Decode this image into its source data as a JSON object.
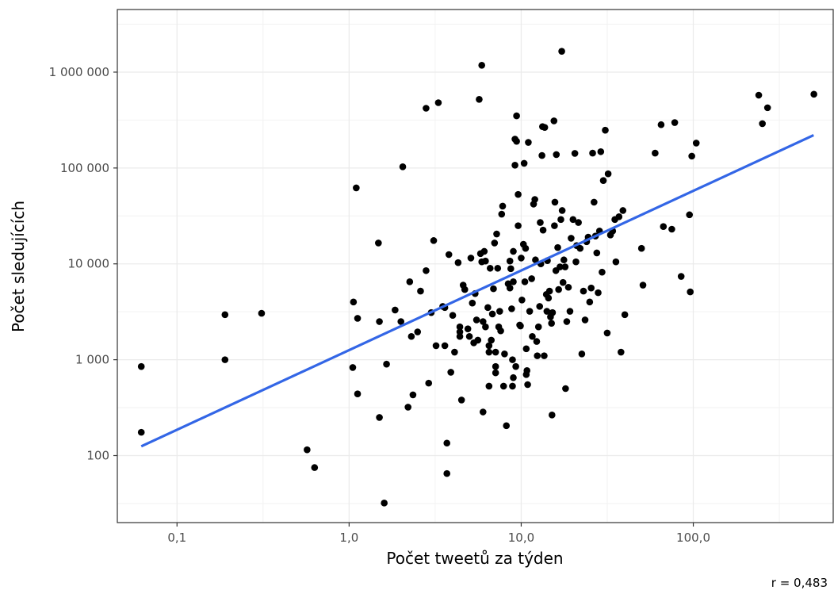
{
  "chart_data": {
    "type": "scatter",
    "xlabel": "Počet tweetů za týden",
    "ylabel": "Počet sledujících",
    "caption": "r = 0,483",
    "x_scale": "log10",
    "y_scale": "log10",
    "xlim": [
      0.045,
      650
    ],
    "ylim": [
      20,
      4500000
    ],
    "x_ticks": [
      0.1,
      1,
      10,
      100
    ],
    "x_tick_labels": [
      "0,1",
      "1,0",
      "10,0",
      "100,0"
    ],
    "y_ticks": [
      100,
      1000,
      10000,
      100000,
      1000000
    ],
    "y_tick_labels": [
      "100",
      "1 000",
      "10 000",
      "100 000",
      "1 000 000"
    ],
    "grid": true,
    "point_color": "#000000",
    "trend_color": "#3366e6",
    "trend_line": {
      "x": [
        0.062,
        500
      ],
      "y": [
        125,
        220000
      ]
    },
    "points": [
      [
        0.062,
        850
      ],
      [
        0.062,
        175
      ],
      [
        0.19,
        2950
      ],
      [
        0.19,
        1000
      ],
      [
        0.31,
        3050
      ],
      [
        0.57,
        115
      ],
      [
        0.63,
        75
      ],
      [
        1.05,
        830
      ],
      [
        1.06,
        4000
      ],
      [
        1.1,
        62000
      ],
      [
        1.12,
        2700
      ],
      [
        1.12,
        440
      ],
      [
        1.48,
        16500
      ],
      [
        1.5,
        2500
      ],
      [
        1.5,
        250
      ],
      [
        1.6,
        32
      ],
      [
        1.65,
        900
      ],
      [
        1.85,
        3300
      ],
      [
        2.0,
        2500
      ],
      [
        2.05,
        103000
      ],
      [
        2.2,
        320
      ],
      [
        2.25,
        6500
      ],
      [
        2.3,
        1750
      ],
      [
        2.35,
        430
      ],
      [
        2.5,
        1950
      ],
      [
        2.6,
        5200
      ],
      [
        2.8,
        420000
      ],
      [
        2.8,
        8500
      ],
      [
        2.9,
        570
      ],
      [
        3.0,
        3100
      ],
      [
        3.1,
        17500
      ],
      [
        3.2,
        1400
      ],
      [
        3.3,
        480000
      ],
      [
        3.5,
        3600
      ],
      [
        3.6,
        3500
      ],
      [
        3.6,
        1400
      ],
      [
        3.7,
        65
      ],
      [
        3.7,
        135
      ],
      [
        3.8,
        12500
      ],
      [
        3.9,
        740
      ],
      [
        4.0,
        2900
      ],
      [
        4.1,
        1200
      ],
      [
        4.3,
        10300
      ],
      [
        4.4,
        2200
      ],
      [
        4.4,
        1950
      ],
      [
        4.4,
        1750
      ],
      [
        4.5,
        380
      ],
      [
        4.6,
        6000
      ],
      [
        4.7,
        5400
      ],
      [
        4.9,
        2100
      ],
      [
        5.0,
        1750
      ],
      [
        5.1,
        11500
      ],
      [
        5.2,
        3900
      ],
      [
        5.3,
        1500
      ],
      [
        5.4,
        4900
      ],
      [
        5.5,
        2600
      ],
      [
        5.6,
        1600
      ],
      [
        5.7,
        520000
      ],
      [
        5.8,
        12800
      ],
      [
        5.9,
        10500
      ],
      [
        5.9,
        1180000
      ],
      [
        6.0,
        2500
      ],
      [
        6.0,
        285
      ],
      [
        6.1,
        13500
      ],
      [
        6.2,
        10700
      ],
      [
        6.2,
        2200
      ],
      [
        6.4,
        3500
      ],
      [
        6.5,
        1400
      ],
      [
        6.5,
        1200
      ],
      [
        6.5,
        530
      ],
      [
        6.6,
        9000
      ],
      [
        6.7,
        1600
      ],
      [
        6.8,
        3000
      ],
      [
        6.9,
        5500
      ],
      [
        7.0,
        16500
      ],
      [
        7.1,
        1200
      ],
      [
        7.1,
        850
      ],
      [
        7.1,
        730
      ],
      [
        7.2,
        20500
      ],
      [
        7.3,
        9000
      ],
      [
        7.4,
        2200
      ],
      [
        7.5,
        3200
      ],
      [
        7.6,
        2000
      ],
      [
        7.7,
        33000
      ],
      [
        7.8,
        40000
      ],
      [
        7.9,
        530
      ],
      [
        8.0,
        1150
      ],
      [
        8.2,
        205
      ],
      [
        8.4,
        6200
      ],
      [
        8.6,
        5600
      ],
      [
        8.6,
        10700
      ],
      [
        8.7,
        8900
      ],
      [
        8.8,
        3400
      ],
      [
        8.9,
        1000
      ],
      [
        8.9,
        530
      ],
      [
        9.0,
        6500
      ],
      [
        9.0,
        13500
      ],
      [
        9.0,
        650
      ],
      [
        9.2,
        200000
      ],
      [
        9.2,
        107000
      ],
      [
        9.3,
        850
      ],
      [
        9.4,
        190000
      ],
      [
        9.4,
        350000
      ],
      [
        9.6,
        25000
      ],
      [
        9.6,
        53000
      ],
      [
        9.8,
        2300
      ],
      [
        9.9,
        2250
      ],
      [
        10.0,
        11500
      ],
      [
        10.1,
        4200
      ],
      [
        10.3,
        16000
      ],
      [
        10.4,
        112000
      ],
      [
        10.5,
        6500
      ],
      [
        10.6,
        14500
      ],
      [
        10.7,
        1300
      ],
      [
        10.7,
        700
      ],
      [
        10.8,
        770
      ],
      [
        10.9,
        550
      ],
      [
        11.0,
        185000
      ],
      [
        11.2,
        3200
      ],
      [
        11.5,
        7000
      ],
      [
        11.6,
        1750
      ],
      [
        11.8,
        42000
      ],
      [
        12.0,
        47000
      ],
      [
        12.1,
        11000
      ],
      [
        12.3,
        1550
      ],
      [
        12.4,
        1100
      ],
      [
        12.6,
        2200
      ],
      [
        12.8,
        3600
      ],
      [
        12.9,
        27000
      ],
      [
        13.0,
        10000
      ],
      [
        13.2,
        135000
      ],
      [
        13.3,
        270000
      ],
      [
        13.4,
        22500
      ],
      [
        13.6,
        1100
      ],
      [
        13.7,
        265000
      ],
      [
        14.0,
        4800
      ],
      [
        14.1,
        3200
      ],
      [
        14.2,
        10800
      ],
      [
        14.4,
        4400
      ],
      [
        14.6,
        5200
      ],
      [
        14.8,
        2800
      ],
      [
        15.0,
        2400
      ],
      [
        15.1,
        265
      ],
      [
        15.2,
        3100
      ],
      [
        15.5,
        310000
      ],
      [
        15.6,
        25000
      ],
      [
        15.7,
        44000
      ],
      [
        15.9,
        8500
      ],
      [
        16.0,
        138000
      ],
      [
        16.3,
        14800
      ],
      [
        16.5,
        5400
      ],
      [
        16.8,
        9300
      ],
      [
        17.0,
        29000
      ],
      [
        17.2,
        1650000
      ],
      [
        17.3,
        36000
      ],
      [
        17.5,
        6400
      ],
      [
        17.7,
        11000
      ],
      [
        18.0,
        9300
      ],
      [
        18.1,
        500
      ],
      [
        18.4,
        2500
      ],
      [
        18.8,
        5700
      ],
      [
        19.2,
        3200
      ],
      [
        19.5,
        18500
      ],
      [
        20.0,
        29000
      ],
      [
        20.5,
        142000
      ],
      [
        20.8,
        10500
      ],
      [
        21.0,
        15500
      ],
      [
        21.5,
        27000
      ],
      [
        22.0,
        14500
      ],
      [
        22.5,
        1150
      ],
      [
        23.0,
        5200
      ],
      [
        23.5,
        2600
      ],
      [
        24.0,
        17000
      ],
      [
        24.5,
        19000
      ],
      [
        25.0,
        4000
      ],
      [
        25.5,
        5600
      ],
      [
        26.0,
        143000
      ],
      [
        26.5,
        44000
      ],
      [
        27.0,
        19500
      ],
      [
        27.5,
        13000
      ],
      [
        28.0,
        5000
      ],
      [
        28.5,
        22000
      ],
      [
        29.0,
        148000
      ],
      [
        29.5,
        8200
      ],
      [
        30.0,
        74000
      ],
      [
        30.8,
        248000
      ],
      [
        31.6,
        1900
      ],
      [
        32.0,
        87000
      ],
      [
        33.0,
        20000
      ],
      [
        34.0,
        22000
      ],
      [
        35.0,
        29000
      ],
      [
        35.5,
        10500
      ],
      [
        37.0,
        31000
      ],
      [
        38.0,
        1200
      ],
      [
        39.0,
        36000
      ],
      [
        40.0,
        2950
      ],
      [
        50.0,
        14500
      ],
      [
        51.0,
        6000
      ],
      [
        60.0,
        143000
      ],
      [
        65.0,
        283000
      ],
      [
        67.0,
        24500
      ],
      [
        75.0,
        23000
      ],
      [
        78.0,
        298000
      ],
      [
        85.0,
        7400
      ],
      [
        95.0,
        32500
      ],
      [
        96.0,
        5100
      ],
      [
        98.0,
        133000
      ],
      [
        104.0,
        182000
      ],
      [
        240.0,
        575000
      ],
      [
        252.0,
        290000
      ],
      [
        270.0,
        425000
      ],
      [
        502.0,
        588000
      ]
    ]
  }
}
